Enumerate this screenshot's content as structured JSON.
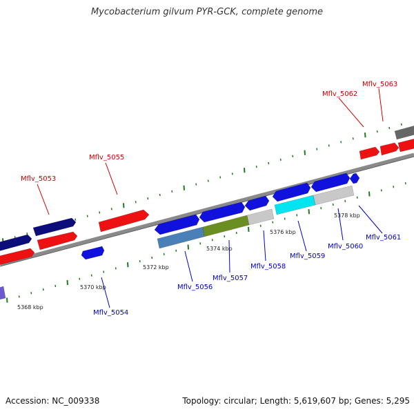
{
  "title": "Mycobacterium gilvum PYR-GCK, complete genome",
  "footer": {
    "accession": "Accession: NC_009338",
    "topology": "Topology: circular; Length: 5,619,607 bp; Genes: 5,295"
  },
  "colors": {
    "backbone": "#8a8a8a",
    "tick_green": "#1e7a1e",
    "label_red": "#cc0000",
    "label_blue": "#0000cc",
    "scale_text": "#222222"
  },
  "scale_labels": [
    "5368 kbp",
    "5370 kbp",
    "5372 kbp",
    "5374 kbp",
    "5376 kbp",
    "5378 kbp"
  ],
  "gene_labels_forward": [
    "Mflv_5053",
    "Mflv_5055",
    "Mflv_5062",
    "Mflv_5063"
  ],
  "gene_labels_reverse": [
    "Mflv_5054",
    "Mflv_5056",
    "Mflv_5057",
    "Mflv_5058",
    "Mflv_5059",
    "Mflv_5060",
    "Mflv_5061"
  ],
  "genes": [
    {
      "id": "navy-a",
      "color": "#0c0c7a"
    },
    {
      "id": "navy-b",
      "color": "#0c0c7a"
    },
    {
      "id": "red-a",
      "color": "#ee1111"
    },
    {
      "id": "red-b",
      "color": "#ee1111"
    },
    {
      "id": "red-5055",
      "color": "#ee1111"
    },
    {
      "id": "red-5062",
      "color": "#ee1111"
    },
    {
      "id": "red-5063",
      "color": "#ee1111"
    },
    {
      "id": "red-edge",
      "color": "#ee1111"
    },
    {
      "id": "grey-edge",
      "color": "#666666"
    },
    {
      "id": "blue-5054",
      "color": "#1111dd"
    },
    {
      "id": "blue-f1",
      "color": "#1111dd"
    },
    {
      "id": "blue-f2",
      "color": "#1111dd"
    },
    {
      "id": "blue-f3",
      "color": "#1111dd"
    },
    {
      "id": "blue-f4",
      "color": "#1111dd"
    },
    {
      "id": "blue-f5",
      "color": "#1111dd"
    },
    {
      "id": "blue-f6",
      "color": "#1111dd"
    },
    {
      "id": "steel-5056",
      "color": "#4a80b8"
    },
    {
      "id": "olive-5057",
      "color": "#6b8e23"
    },
    {
      "id": "grey-5058",
      "color": "#c8c8c8"
    },
    {
      "id": "cyan-5059",
      "color": "#00e5f0"
    },
    {
      "id": "grey-5060",
      "color": "#c8c8c8"
    },
    {
      "id": "purple-edge",
      "color": "#6a5acd"
    }
  ]
}
